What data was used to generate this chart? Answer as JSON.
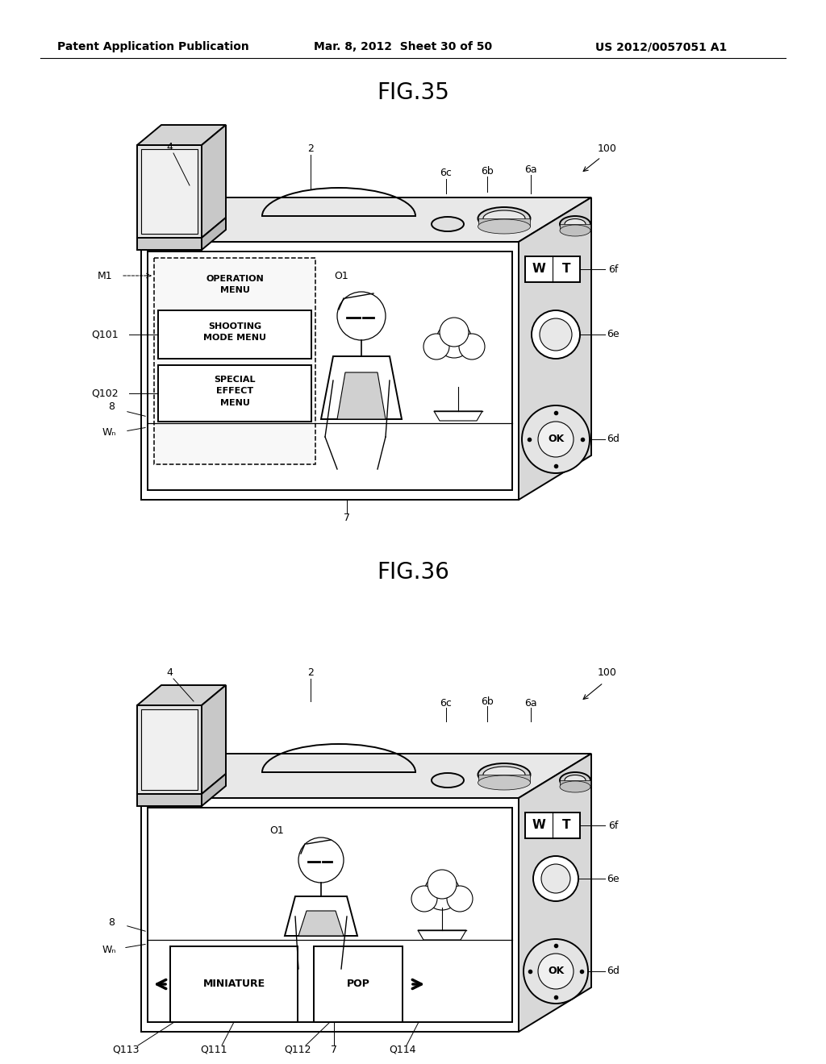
{
  "header_left": "Patent Application Publication",
  "header_mid": "Mar. 8, 2012  Sheet 30 of 50",
  "header_right": "US 2012/0057051 A1",
  "fig35_title": "FIG.35",
  "fig36_title": "FIG.36",
  "bg_color": "#ffffff",
  "line_color": "#000000"
}
